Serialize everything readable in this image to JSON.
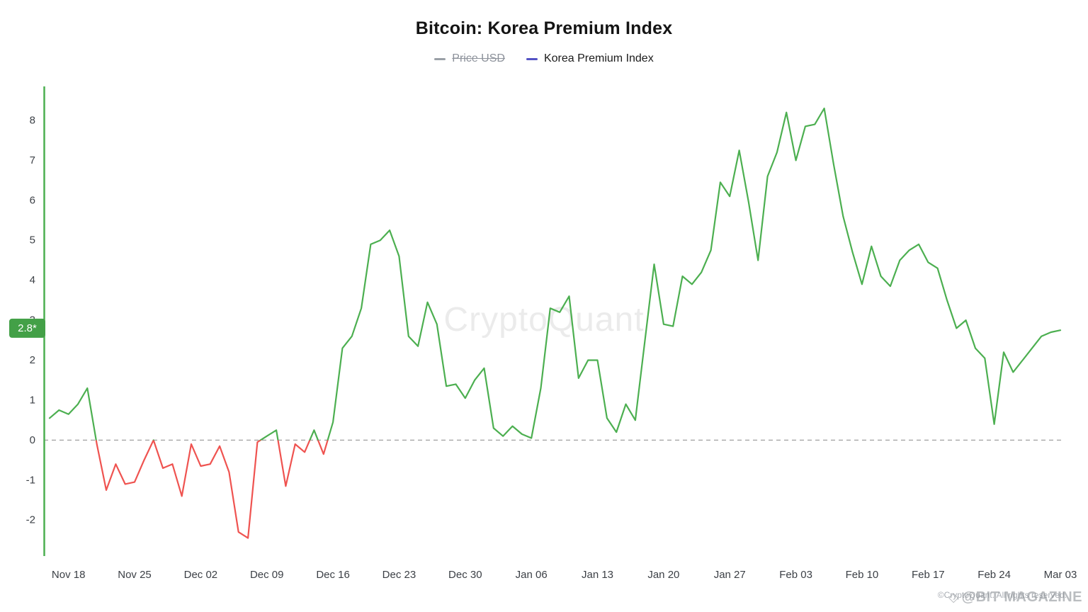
{
  "page": {
    "title": "Bitcoin: Korea Premium Index",
    "watermark_center": "CryptoQuant",
    "watermark_bottom": "@BIT MAGAZINE",
    "copyright": "©CryptoQuant. All rights reserved."
  },
  "legend": {
    "items": [
      {
        "label": "Price USD",
        "color": "#9aa0a6",
        "disabled": true
      },
      {
        "label": "Korea Premium Index",
        "color": "#5352C4",
        "disabled": false
      }
    ]
  },
  "current_value_badge": {
    "text": "2.8*",
    "value": 2.8,
    "color": "#43A047"
  },
  "chart_data": {
    "type": "line",
    "title": "Bitcoin: Korea Premium Index",
    "xlabel": "",
    "ylabel": "",
    "series": [
      {
        "name": "Korea Premium Index",
        "values": [
          0.55,
          0.75,
          0.65,
          0.9,
          1.3,
          -0.1,
          -1.25,
          -0.6,
          -1.1,
          -1.05,
          -0.5,
          0.0,
          -0.7,
          -0.6,
          -1.4,
          -0.1,
          -0.65,
          -0.6,
          -0.15,
          -0.8,
          -2.3,
          -2.45,
          -0.05,
          0.1,
          0.25,
          -1.15,
          -0.1,
          -0.3,
          0.25,
          -0.35,
          0.45,
          2.3,
          2.6,
          3.3,
          4.9,
          5.0,
          5.25,
          4.6,
          2.6,
          2.35,
          3.45,
          2.9,
          1.35,
          1.4,
          1.05,
          1.5,
          1.8,
          0.3,
          0.1,
          0.35,
          0.15,
          0.05,
          1.3,
          3.3,
          3.2,
          3.6,
          1.55,
          2.0,
          2.0,
          0.55,
          0.2,
          0.9,
          0.5,
          2.45,
          4.4,
          2.9,
          2.85,
          4.1,
          3.9,
          4.2,
          4.75,
          6.45,
          6.1,
          7.25,
          5.95,
          4.5,
          6.6,
          7.2,
          8.2,
          7.0,
          7.85,
          7.9,
          8.3,
          6.9,
          5.6,
          4.7,
          3.9,
          4.85,
          4.1,
          3.85,
          4.5,
          4.75,
          4.9,
          4.45,
          4.3,
          3.5,
          2.8,
          3.0,
          2.3,
          2.05,
          0.4,
          2.2,
          1.7,
          2.0,
          2.3,
          2.6,
          2.7,
          2.75
        ]
      }
    ],
    "start_date": "2024-11-16",
    "end_date": "2025-03-03",
    "frequency": "daily",
    "x_tick_labels": [
      "Nov 18",
      "Nov 25",
      "Dec 02",
      "Dec 09",
      "Dec 16",
      "Dec 23",
      "Dec 30",
      "Jan 06",
      "Jan 13",
      "Jan 20",
      "Jan 27",
      "Feb 03",
      "Feb 10",
      "Feb 17",
      "Feb 24",
      "Mar 03"
    ],
    "x_tick_indices": [
      2,
      9,
      16,
      23,
      30,
      37,
      44,
      51,
      58,
      65,
      72,
      79,
      86,
      93,
      100,
      107
    ],
    "y_ticks": [
      8,
      7,
      6,
      5,
      4,
      3,
      2,
      1,
      0,
      -1,
      -2
    ],
    "ylim": [
      -2.9,
      8.85
    ],
    "grid": false,
    "legend_position": "top",
    "zero_line": {
      "value": 0,
      "style": "dashed",
      "color": "#a0a0a0"
    },
    "colors": {
      "positive": "#4CAF50",
      "negative": "#EF5350",
      "axis": "#4CAF50"
    }
  }
}
